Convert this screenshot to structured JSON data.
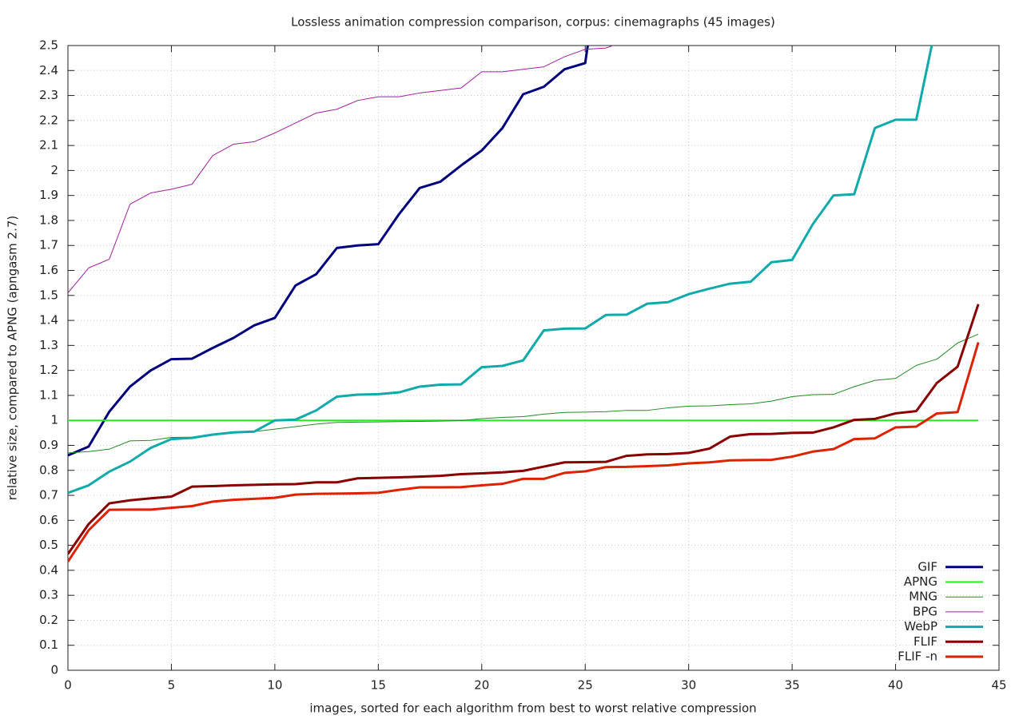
{
  "chart_data": {
    "type": "line",
    "title": "Lossless animation compression comparison, corpus: cinemagraphs (45 images)",
    "xlabel": "images, sorted for each algorithm from best to worst relative compression",
    "ylabel": "relative size, compared to APNG (apngasm 2.7)",
    "x": [
      0,
      1,
      2,
      3,
      4,
      5,
      6,
      7,
      8,
      9,
      10,
      11,
      12,
      13,
      14,
      15,
      16,
      17,
      18,
      19,
      20,
      21,
      22,
      23,
      24,
      25,
      26,
      27,
      28,
      29,
      30,
      31,
      32,
      33,
      34,
      35,
      36,
      37,
      38,
      39,
      40,
      41,
      42,
      43,
      44
    ],
    "xlim": [
      0,
      45
    ],
    "xticks": [
      0,
      5,
      10,
      15,
      20,
      25,
      30,
      35,
      40,
      45
    ],
    "ylim": [
      0,
      2.5
    ],
    "yticks": [
      0,
      0.1,
      0.2,
      0.3,
      0.4,
      0.5,
      0.6,
      0.7,
      0.8,
      0.9,
      1,
      1.1,
      1.2,
      1.3,
      1.4,
      1.5,
      1.6,
      1.7,
      1.8,
      1.9,
      2,
      2.1,
      2.2,
      2.3,
      2.4,
      2.5
    ],
    "grid": true,
    "legend": "bottom right",
    "series": [
      {
        "name": "GIF",
        "color": "#00007f",
        "width": 3,
        "values": [
          0.86,
          0.895,
          1.035,
          1.135,
          1.2,
          1.245,
          1.247,
          1.29,
          1.33,
          1.38,
          1.41,
          1.54,
          1.585,
          1.69,
          1.7,
          1.705,
          1.825,
          1.93,
          1.955,
          2.02,
          2.08,
          2.17,
          2.305,
          2.335,
          2.405,
          2.43,
          3.0,
          null,
          null,
          null,
          null,
          null,
          null,
          null,
          null,
          null,
          null,
          null,
          null,
          null,
          null,
          null,
          null,
          null,
          null
        ]
      },
      {
        "name": "APNG",
        "color": "#22ee22",
        "width": 2,
        "values": [
          1,
          1,
          1,
          1,
          1,
          1,
          1,
          1,
          1,
          1,
          1,
          1,
          1,
          1,
          1,
          1,
          1,
          1,
          1,
          1,
          1,
          1,
          1,
          1,
          1,
          1,
          1,
          1,
          1,
          1,
          1,
          1,
          1,
          1,
          1,
          1,
          1,
          1,
          1,
          1,
          1,
          1,
          1,
          1,
          1
        ]
      },
      {
        "name": "MNG",
        "color": "#228b22",
        "width": 1,
        "values": [
          0.87,
          0.875,
          0.885,
          0.918,
          0.92,
          0.932,
          0.933,
          0.945,
          0.952,
          0.955,
          0.965,
          0.975,
          0.985,
          0.992,
          0.993,
          0.994,
          0.995,
          0.996,
          0.997,
          0.999,
          1.007,
          1.012,
          1.015,
          1.025,
          1.032,
          1.033,
          1.035,
          1.04,
          1.04,
          1.05,
          1.057,
          1.058,
          1.063,
          1.066,
          1.077,
          1.095,
          1.103,
          1.104,
          1.135,
          1.16,
          1.168,
          1.22,
          1.245,
          1.31,
          1.345
        ]
      },
      {
        "name": "BPG",
        "color": "#a020a0",
        "width": 1,
        "values": [
          1.51,
          1.61,
          1.645,
          1.865,
          1.91,
          1.925,
          1.945,
          2.06,
          2.105,
          2.115,
          2.15,
          2.19,
          2.23,
          2.245,
          2.28,
          2.295,
          2.295,
          2.31,
          2.32,
          2.33,
          2.395,
          2.395,
          2.405,
          2.415,
          2.455,
          2.485,
          2.49,
          2.52,
          null,
          null,
          null,
          null,
          null,
          null,
          null,
          null,
          null,
          null,
          null,
          null,
          null,
          null,
          null,
          null,
          null
        ]
      },
      {
        "name": "WebP",
        "color": "#11aaaa",
        "width": 3,
        "values": [
          0.71,
          0.74,
          0.795,
          0.835,
          0.89,
          0.925,
          0.93,
          0.943,
          0.952,
          0.955,
          1.0,
          1.003,
          1.04,
          1.095,
          1.103,
          1.105,
          1.112,
          1.135,
          1.143,
          1.144,
          1.213,
          1.218,
          1.24,
          1.36,
          1.367,
          1.368,
          1.422,
          1.423,
          1.467,
          1.473,
          1.505,
          1.527,
          1.547,
          1.555,
          1.633,
          1.642,
          1.785,
          1.9,
          1.905,
          2.17,
          2.203,
          2.203,
          2.6,
          null,
          null
        ]
      },
      {
        "name": "FLIF",
        "color": "#880000",
        "width": 3,
        "values": [
          0.465,
          0.585,
          0.668,
          0.68,
          0.688,
          0.695,
          0.735,
          0.737,
          0.74,
          0.742,
          0.744,
          0.745,
          0.752,
          0.752,
          0.768,
          0.77,
          0.772,
          0.775,
          0.778,
          0.785,
          0.788,
          0.792,
          0.798,
          0.815,
          0.832,
          0.833,
          0.834,
          0.858,
          0.864,
          0.865,
          0.87,
          0.887,
          0.935,
          0.945,
          0.946,
          0.95,
          0.951,
          0.972,
          1.002,
          1.006,
          1.028,
          1.037,
          1.15,
          1.215,
          1.465
        ]
      },
      {
        "name": "FLIF -n",
        "color": "#dd2200",
        "width": 3,
        "values": [
          0.435,
          0.56,
          0.642,
          0.643,
          0.643,
          0.65,
          0.657,
          0.675,
          0.682,
          0.686,
          0.69,
          0.703,
          0.706,
          0.707,
          0.708,
          0.71,
          0.722,
          0.732,
          0.732,
          0.733,
          0.74,
          0.746,
          0.766,
          0.766,
          0.79,
          0.796,
          0.813,
          0.814,
          0.817,
          0.82,
          0.828,
          0.832,
          0.84,
          0.841,
          0.842,
          0.855,
          0.875,
          0.885,
          0.925,
          0.928,
          0.972,
          0.975,
          1.028,
          1.033,
          1.312
        ]
      }
    ]
  }
}
